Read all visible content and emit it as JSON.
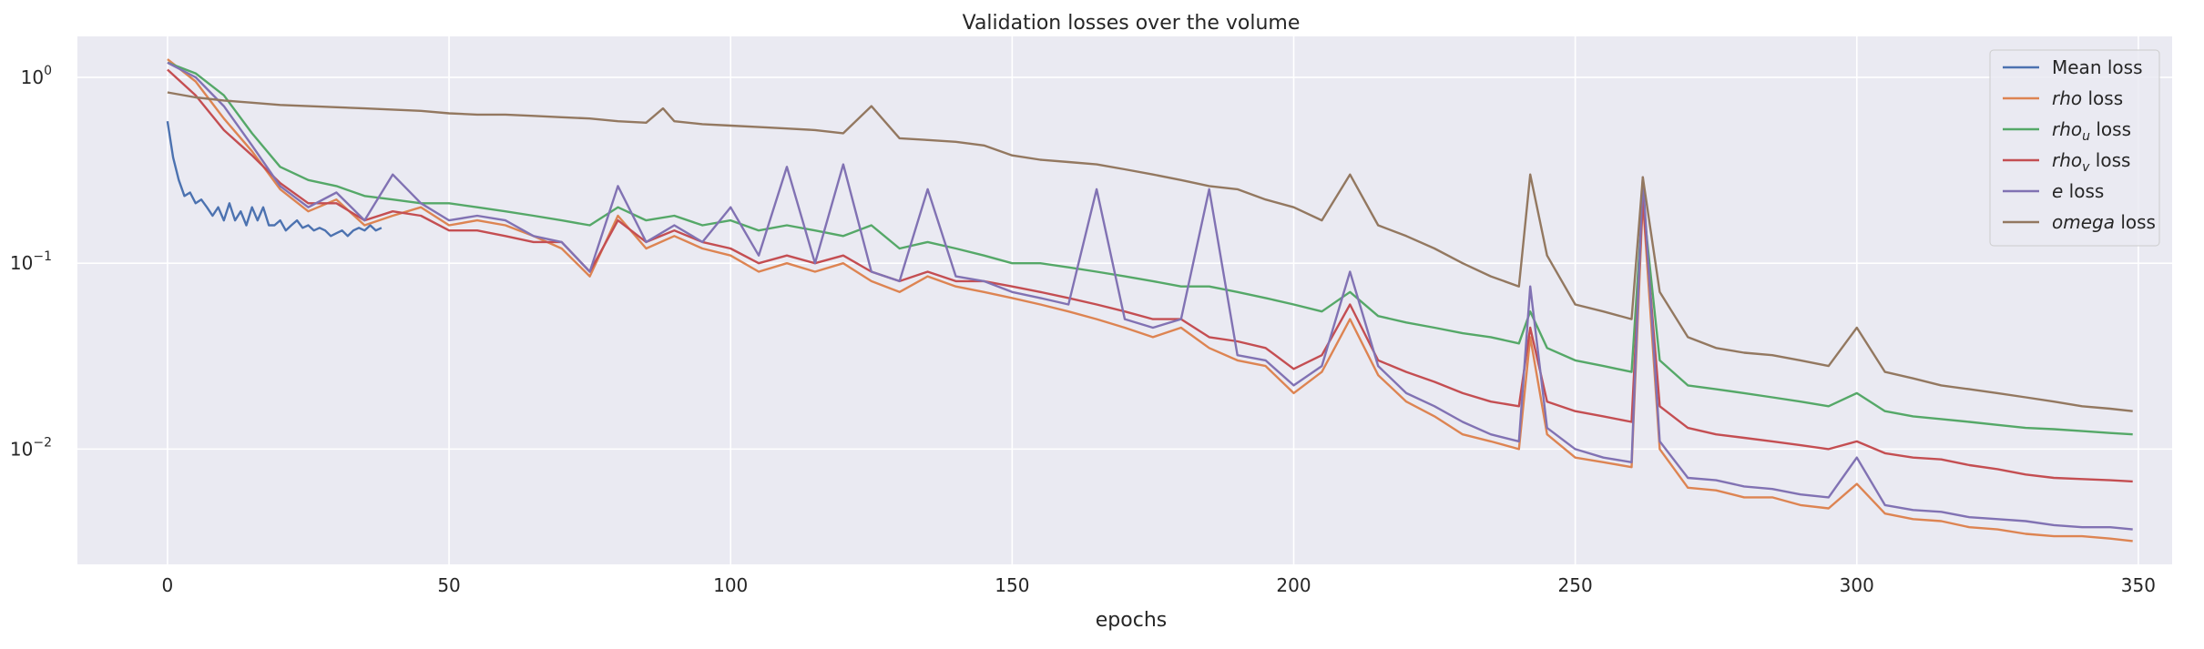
{
  "chart_data": {
    "type": "line",
    "title": "Validation losses over the volume",
    "xlabel": "epochs",
    "ylabel": "",
    "xlim": [
      -16,
      356
    ],
    "ylim_log10": [
      -2.62,
      0.22
    ],
    "yscale": "log",
    "grid": true,
    "legend_position": "top-right",
    "x_ticks": [
      0,
      50,
      100,
      150,
      200,
      250,
      300,
      350
    ],
    "y_ticks": [
      {
        "value": 1,
        "base": "10",
        "exp": "0"
      },
      {
        "value": 0.1,
        "base": "10",
        "exp": "−1"
      },
      {
        "value": 0.01,
        "base": "10",
        "exp": "−2"
      }
    ],
    "colors": {
      "background": "#eaeaf2",
      "grid": "#ffffff",
      "mean": "#4c72b0",
      "rho": "#dd8452",
      "rho_u": "#55a868",
      "rho_v": "#c44e52",
      "e": "#8172b3",
      "omega": "#937860"
    },
    "series": [
      {
        "key": "mean",
        "legend_label": {
          "main": "Mean loss",
          "italic": "",
          "sub": "",
          "suffix": ""
        },
        "x": [
          0,
          1,
          2,
          3,
          4,
          5,
          6,
          7,
          8,
          9,
          10,
          11,
          12,
          13,
          14,
          15,
          16,
          17,
          18,
          19,
          20,
          21,
          22,
          23,
          24,
          25,
          26,
          27,
          28,
          29,
          30,
          31,
          32,
          33,
          34,
          35,
          36,
          37,
          38
        ],
        "y": [
          0.58,
          0.37,
          0.28,
          0.23,
          0.24,
          0.21,
          0.22,
          0.2,
          0.18,
          0.2,
          0.17,
          0.21,
          0.17,
          0.19,
          0.16,
          0.2,
          0.17,
          0.2,
          0.16,
          0.16,
          0.17,
          0.15,
          0.16,
          0.17,
          0.155,
          0.16,
          0.15,
          0.155,
          0.15,
          0.14,
          0.145,
          0.15,
          0.14,
          0.15,
          0.155,
          0.15,
          0.16,
          0.15,
          0.155
        ]
      },
      {
        "key": "rho",
        "legend_label": {
          "main": "",
          "italic": "rho",
          "sub": "",
          "suffix": " loss"
        },
        "x": [
          0,
          5,
          10,
          15,
          20,
          25,
          30,
          35,
          40,
          45,
          50,
          55,
          60,
          65,
          70,
          75,
          80,
          85,
          90,
          95,
          100,
          105,
          110,
          115,
          120,
          125,
          130,
          135,
          140,
          145,
          150,
          155,
          160,
          165,
          170,
          175,
          180,
          185,
          190,
          195,
          200,
          205,
          210,
          215,
          220,
          225,
          230,
          235,
          240,
          242,
          245,
          250,
          255,
          260,
          262,
          265,
          270,
          275,
          280,
          285,
          290,
          295,
          300,
          305,
          310,
          315,
          320,
          325,
          330,
          335,
          340,
          345,
          349
        ],
        "y": [
          1.25,
          0.95,
          0.6,
          0.4,
          0.25,
          0.19,
          0.22,
          0.16,
          0.18,
          0.2,
          0.16,
          0.17,
          0.16,
          0.14,
          0.12,
          0.085,
          0.18,
          0.12,
          0.14,
          0.12,
          0.11,
          0.09,
          0.1,
          0.09,
          0.1,
          0.08,
          0.07,
          0.085,
          0.075,
          0.07,
          0.065,
          0.06,
          0.055,
          0.05,
          0.045,
          0.04,
          0.045,
          0.035,
          0.03,
          0.028,
          0.02,
          0.026,
          0.05,
          0.025,
          0.018,
          0.015,
          0.012,
          0.011,
          0.01,
          0.04,
          0.012,
          0.009,
          0.0085,
          0.008,
          0.22,
          0.01,
          0.0062,
          0.006,
          0.0055,
          0.0055,
          0.005,
          0.0048,
          0.0065,
          0.0045,
          0.0042,
          0.0041,
          0.0038,
          0.0037,
          0.0035,
          0.0034,
          0.0034,
          0.0033,
          0.0032
        ]
      },
      {
        "key": "rho_u",
        "legend_label": {
          "main": "",
          "italic": "rho",
          "sub": "u",
          "suffix": " loss"
        },
        "x": [
          0,
          5,
          10,
          15,
          20,
          25,
          30,
          35,
          40,
          45,
          50,
          55,
          60,
          65,
          70,
          75,
          80,
          85,
          90,
          95,
          100,
          105,
          110,
          115,
          120,
          125,
          130,
          135,
          140,
          145,
          150,
          155,
          160,
          165,
          170,
          175,
          180,
          185,
          190,
          195,
          200,
          205,
          210,
          215,
          220,
          225,
          230,
          235,
          240,
          242,
          245,
          250,
          255,
          260,
          262,
          265,
          270,
          275,
          280,
          285,
          290,
          295,
          300,
          305,
          310,
          315,
          320,
          325,
          330,
          335,
          340,
          345,
          349
        ],
        "y": [
          1.2,
          1.05,
          0.8,
          0.5,
          0.33,
          0.28,
          0.26,
          0.23,
          0.22,
          0.21,
          0.21,
          0.2,
          0.19,
          0.18,
          0.17,
          0.16,
          0.2,
          0.17,
          0.18,
          0.16,
          0.17,
          0.15,
          0.16,
          0.15,
          0.14,
          0.16,
          0.12,
          0.13,
          0.12,
          0.11,
          0.1,
          0.1,
          0.095,
          0.09,
          0.085,
          0.08,
          0.075,
          0.075,
          0.07,
          0.065,
          0.06,
          0.055,
          0.07,
          0.052,
          0.048,
          0.045,
          0.042,
          0.04,
          0.037,
          0.055,
          0.035,
          0.03,
          0.028,
          0.026,
          0.22,
          0.03,
          0.022,
          0.021,
          0.02,
          0.019,
          0.018,
          0.017,
          0.02,
          0.016,
          0.015,
          0.0145,
          0.014,
          0.0135,
          0.013,
          0.0128,
          0.0125,
          0.0122,
          0.012
        ]
      },
      {
        "key": "rho_v",
        "legend_label": {
          "main": "",
          "italic": "rho",
          "sub": "v",
          "suffix": " loss"
        },
        "x": [
          0,
          5,
          10,
          15,
          20,
          25,
          30,
          35,
          40,
          45,
          50,
          55,
          60,
          65,
          70,
          75,
          80,
          85,
          90,
          95,
          100,
          105,
          110,
          115,
          120,
          125,
          130,
          135,
          140,
          145,
          150,
          155,
          160,
          165,
          170,
          175,
          180,
          185,
          190,
          195,
          200,
          205,
          210,
          215,
          220,
          225,
          230,
          235,
          240,
          242,
          245,
          250,
          255,
          260,
          262,
          265,
          270,
          275,
          280,
          285,
          290,
          295,
          300,
          305,
          310,
          315,
          320,
          325,
          330,
          335,
          340,
          345,
          349
        ],
        "y": [
          1.1,
          0.8,
          0.52,
          0.38,
          0.27,
          0.21,
          0.21,
          0.17,
          0.19,
          0.18,
          0.15,
          0.15,
          0.14,
          0.13,
          0.13,
          0.09,
          0.17,
          0.13,
          0.15,
          0.13,
          0.12,
          0.1,
          0.11,
          0.1,
          0.11,
          0.09,
          0.08,
          0.09,
          0.08,
          0.08,
          0.075,
          0.07,
          0.065,
          0.06,
          0.055,
          0.05,
          0.05,
          0.04,
          0.038,
          0.035,
          0.027,
          0.032,
          0.06,
          0.03,
          0.026,
          0.023,
          0.02,
          0.018,
          0.017,
          0.045,
          0.018,
          0.016,
          0.015,
          0.014,
          0.22,
          0.017,
          0.013,
          0.012,
          0.0115,
          0.011,
          0.0105,
          0.01,
          0.011,
          0.0095,
          0.009,
          0.0088,
          0.0082,
          0.0078,
          0.0073,
          0.007,
          0.0069,
          0.0068,
          0.0067
        ]
      },
      {
        "key": "e",
        "legend_label": {
          "main": "",
          "italic": "e",
          "sub": "",
          "suffix": " loss"
        },
        "x": [
          0,
          5,
          10,
          15,
          20,
          25,
          30,
          35,
          40,
          45,
          50,
          55,
          60,
          65,
          70,
          75,
          80,
          85,
          90,
          95,
          100,
          105,
          110,
          115,
          120,
          125,
          130,
          135,
          140,
          145,
          150,
          155,
          160,
          165,
          170,
          175,
          180,
          185,
          190,
          195,
          200,
          205,
          210,
          215,
          220,
          225,
          230,
          235,
          240,
          242,
          245,
          250,
          255,
          260,
          262,
          265,
          270,
          275,
          280,
          285,
          290,
          295,
          300,
          305,
          310,
          315,
          320,
          325,
          330,
          335,
          340,
          345,
          349
        ],
        "y": [
          1.2,
          1.0,
          0.7,
          0.43,
          0.26,
          0.2,
          0.24,
          0.17,
          0.3,
          0.21,
          0.17,
          0.18,
          0.17,
          0.14,
          0.13,
          0.09,
          0.26,
          0.13,
          0.16,
          0.13,
          0.2,
          0.11,
          0.33,
          0.1,
          0.34,
          0.09,
          0.08,
          0.25,
          0.085,
          0.08,
          0.07,
          0.065,
          0.06,
          0.25,
          0.05,
          0.045,
          0.05,
          0.25,
          0.032,
          0.03,
          0.022,
          0.028,
          0.09,
          0.028,
          0.02,
          0.017,
          0.014,
          0.012,
          0.011,
          0.075,
          0.013,
          0.01,
          0.009,
          0.0085,
          0.29,
          0.011,
          0.007,
          0.0068,
          0.0063,
          0.0061,
          0.0057,
          0.0055,
          0.009,
          0.005,
          0.0047,
          0.0046,
          0.0043,
          0.0042,
          0.0041,
          0.0039,
          0.0038,
          0.0038,
          0.0037
        ]
      },
      {
        "key": "omega",
        "legend_label": {
          "main": "",
          "italic": "omega",
          "sub": "",
          "suffix": " loss"
        },
        "x": [
          0,
          5,
          10,
          15,
          20,
          25,
          30,
          35,
          40,
          45,
          50,
          55,
          60,
          65,
          70,
          75,
          80,
          85,
          88,
          90,
          95,
          100,
          105,
          110,
          115,
          120,
          125,
          130,
          135,
          140,
          145,
          150,
          155,
          160,
          165,
          170,
          175,
          180,
          185,
          190,
          195,
          200,
          205,
          210,
          215,
          220,
          225,
          230,
          235,
          240,
          242,
          245,
          250,
          255,
          260,
          262,
          265,
          270,
          275,
          280,
          285,
          290,
          295,
          300,
          305,
          310,
          315,
          320,
          325,
          330,
          335,
          340,
          345,
          349
        ],
        "y": [
          0.83,
          0.78,
          0.75,
          0.73,
          0.71,
          0.7,
          0.69,
          0.68,
          0.67,
          0.66,
          0.64,
          0.63,
          0.63,
          0.62,
          0.61,
          0.6,
          0.58,
          0.57,
          0.68,
          0.58,
          0.56,
          0.55,
          0.54,
          0.53,
          0.52,
          0.5,
          0.7,
          0.47,
          0.46,
          0.45,
          0.43,
          0.38,
          0.36,
          0.35,
          0.34,
          0.32,
          0.3,
          0.28,
          0.26,
          0.25,
          0.22,
          0.2,
          0.17,
          0.3,
          0.16,
          0.14,
          0.12,
          0.1,
          0.085,
          0.075,
          0.3,
          0.11,
          0.06,
          0.055,
          0.05,
          0.29,
          0.07,
          0.04,
          0.035,
          0.033,
          0.032,
          0.03,
          0.028,
          0.045,
          0.026,
          0.024,
          0.022,
          0.021,
          0.02,
          0.019,
          0.018,
          0.017,
          0.0165,
          0.016
        ]
      }
    ]
  }
}
